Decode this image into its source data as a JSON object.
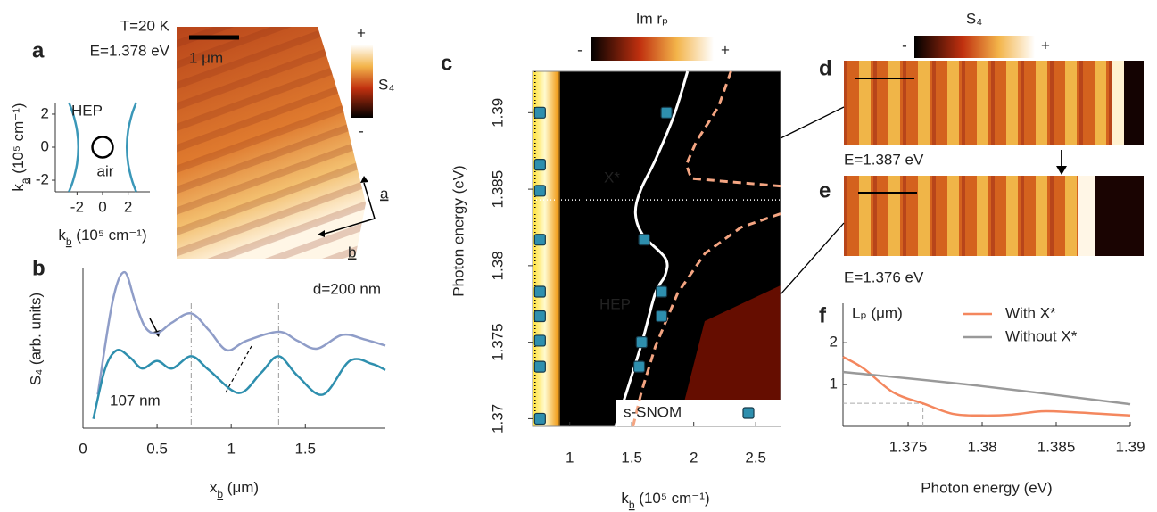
{
  "panel_labels": [
    "a",
    "b",
    "c",
    "d",
    "e",
    "f"
  ],
  "images": {
    "a": {
      "temperature": "T=20 K",
      "energy": "E=1.378 eV",
      "scale_bar": "1 μm",
      "colorbar_label": "S₄",
      "colorbar_max": "+",
      "colorbar_min": "-",
      "axis_a": "a",
      "axis_b": "b"
    },
    "d": {
      "energy": "E=1.387 eV",
      "colorbar_label": "S₄",
      "colorbar_min": "-",
      "colorbar_max": "+"
    },
    "e": {
      "energy": "E=1.376 eV"
    }
  },
  "chart_data": [
    {
      "type": "curve",
      "xlabel": [
        "k",
        "b",
        " (10⁵ cm⁻¹)"
      ],
      "ylabel": [
        "k",
        "a",
        " (10⁵ cm⁻¹)"
      ],
      "xlim": [
        -3.7,
        3.7
      ],
      "ylim": [
        -2.7,
        2.7
      ],
      "xticks": [
        -2,
        0,
        2
      ],
      "yticks": [
        -2,
        0,
        2
      ],
      "series": [
        {
          "name": "HEP",
          "color": "#3a97b8",
          "x": [
            2.63,
            2.3,
            2.0,
            1.9,
            2.0,
            2.3,
            2.63
          ],
          "values": [
            -2.7,
            -2,
            -1,
            0,
            1,
            2,
            2.7
          ]
        },
        {
          "color": "#3a97b8",
          "x": [
            -2.63,
            -2.3,
            -2.0,
            -1.9,
            -2.0,
            -2.3,
            -2.63
          ],
          "values": [
            -2.7,
            -2,
            -1,
            0,
            1,
            2,
            2.7
          ]
        }
      ],
      "circle": {
        "name": "air",
        "radius": 0.8,
        "color": "#000000"
      }
    },
    {
      "type": "line",
      "xlabel": [
        "x",
        "b",
        " (μm)"
      ],
      "ylabel": "S₄ (arb. units)",
      "xlim": [
        0,
        2.04
      ],
      "ylim": [
        0,
        1.05
      ],
      "xticks": [
        0,
        0.5,
        1,
        1.5
      ],
      "guides": [
        0.73,
        1.32
      ],
      "series": [
        {
          "name": "d=200 nm",
          "color": "#8f9dc8",
          "x": [
            0.1,
            0.2,
            0.28,
            0.35,
            0.42,
            0.5,
            0.6,
            0.73,
            0.85,
            0.97,
            1.1,
            1.32,
            1.45,
            1.58,
            1.75,
            1.9,
            2.04
          ],
          "values": [
            0.22,
            0.83,
            1.02,
            0.83,
            0.66,
            0.62,
            0.69,
            0.75,
            0.64,
            0.51,
            0.57,
            0.63,
            0.57,
            0.52,
            0.61,
            0.58,
            0.54
          ]
        },
        {
          "name": "107 nm",
          "color": "#2e8fae",
          "x": [
            0.07,
            0.15,
            0.23,
            0.32,
            0.4,
            0.5,
            0.6,
            0.73,
            0.85,
            1.05,
            1.2,
            1.32,
            1.45,
            1.62,
            1.8,
            1.95,
            2.04
          ],
          "values": [
            0.06,
            0.39,
            0.51,
            0.46,
            0.39,
            0.44,
            0.39,
            0.47,
            0.38,
            0.23,
            0.36,
            0.47,
            0.34,
            0.22,
            0.44,
            0.42,
            0.38
          ]
        }
      ]
    },
    {
      "type": "map",
      "colorbar": {
        "label": "Im rₚ",
        "min": "-",
        "max": "+"
      },
      "annotations": {
        "exciton": "X*",
        "hep": "HEP"
      },
      "xlabel": [
        "k",
        "b",
        " (10⁵ cm⁻¹)"
      ],
      "ylabel": "Photon energy (eV)",
      "xlim": [
        0.7,
        2.7
      ],
      "ylim": [
        1.3695,
        1.3927
      ],
      "xticks": [
        1,
        1.5,
        2,
        2.5
      ],
      "yticks": [
        1.37,
        1.375,
        1.38,
        1.385,
        1.39
      ],
      "guides": {
        "x": 0.72,
        "y": 1.3843
      },
      "legend": "lower right",
      "series": [
        {
          "mode": "line",
          "color": "#ffffff",
          "x": [
            1.95,
            1.84,
            1.69,
            1.57,
            1.53,
            1.59,
            1.77,
            1.77,
            1.69,
            1.59,
            1.48,
            1.37
          ],
          "values": [
            1.3927,
            1.3898,
            1.3869,
            1.3849,
            1.3834,
            1.382,
            1.3805,
            1.3794,
            1.3782,
            1.3752,
            1.3723,
            1.3695
          ]
        },
        {
          "mode": "dashed",
          "color": "#f4a582",
          "x": [
            2.3,
            2.2,
            2.02,
            1.94,
            1.98,
            2.7
          ],
          "values": [
            1.3927,
            1.3904,
            1.3881,
            1.3866,
            1.3857,
            1.3852
          ]
        },
        {
          "mode": "dashed",
          "color": "#f4a582",
          "x": [
            2.7,
            2.38,
            2.09,
            1.87,
            1.69,
            1.58,
            1.51
          ],
          "values": [
            1.3834,
            1.3825,
            1.3808,
            1.3782,
            1.3747,
            1.3718,
            1.3695
          ]
        },
        {
          "mode": "markers",
          "name": "s-SNOM",
          "color": "#2e8fae",
          "x": [
            0.76,
            0.76,
            0.76,
            0.76,
            0.76,
            0.76,
            0.76,
            0.76,
            0.76,
            1.78,
            1.6,
            1.74,
            1.74,
            1.58,
            1.56
          ],
          "values": [
            1.39,
            1.3866,
            1.3849,
            1.3817,
            1.3783,
            1.3767,
            1.3751,
            1.3734,
            1.37,
            1.39,
            1.3817,
            1.3783,
            1.3767,
            1.375,
            1.3734
          ]
        }
      ]
    },
    {
      "type": "line",
      "xlabel": "Photon energy (eV)",
      "ylabel": "Lₚ  (μm)",
      "xlim": [
        1.3706,
        1.39
      ],
      "ylim": [
        0,
        2.94
      ],
      "xticks": [
        1.375,
        1.38,
        1.385,
        1.39
      ],
      "yticks": [
        1,
        2
      ],
      "guides": {
        "x": 1.376,
        "y": 0.55
      },
      "legend": "upper right",
      "series": [
        {
          "name": "With X*",
          "color": "#f4875e",
          "x": [
            1.3706,
            1.372,
            1.374,
            1.376,
            1.378,
            1.38,
            1.382,
            1.384,
            1.386,
            1.388,
            1.39
          ],
          "values": [
            1.66,
            1.38,
            0.81,
            0.55,
            0.3,
            0.26,
            0.28,
            0.36,
            0.34,
            0.3,
            0.26
          ]
        },
        {
          "name": "Without X*",
          "color": "#999999",
          "x": [
            1.3706,
            1.38,
            1.39
          ],
          "values": [
            1.3,
            0.96,
            0.53
          ]
        }
      ]
    }
  ]
}
